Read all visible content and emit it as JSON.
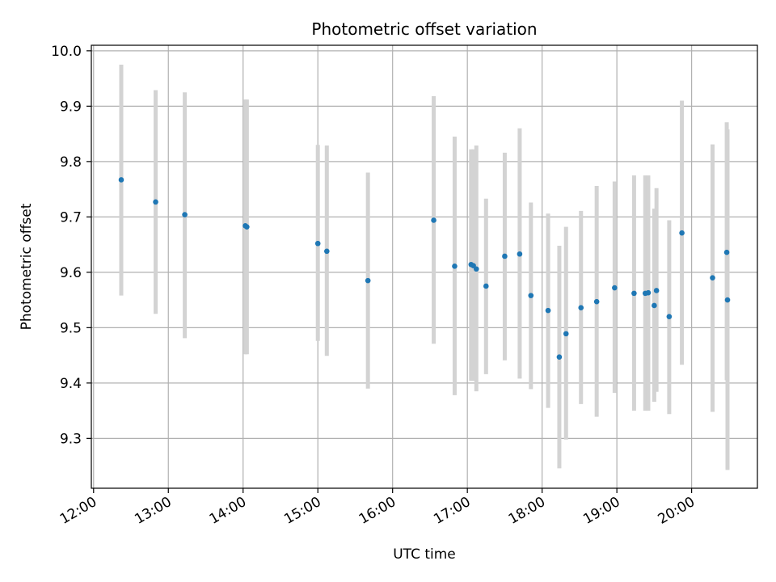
{
  "chart_data": {
    "type": "scatter",
    "title": "Photometric offset variation",
    "xlabel": "UTC time",
    "ylabel": "Photometric offset",
    "x_unit": "hour of day (UTC)",
    "xlim": [
      11.97,
      20.88
    ],
    "ylim": [
      9.21,
      10.01
    ],
    "x_ticks": [
      12,
      13,
      14,
      15,
      16,
      17,
      18,
      19,
      20
    ],
    "x_tick_labels": [
      "12:00",
      "13:00",
      "14:00",
      "15:00",
      "16:00",
      "17:00",
      "18:00",
      "19:00",
      "20:00"
    ],
    "y_ticks": [
      9.3,
      9.4,
      9.5,
      9.6,
      9.7,
      9.8,
      9.9,
      10.0
    ],
    "y_tick_labels": [
      "9.3",
      "9.4",
      "9.5",
      "9.6",
      "9.7",
      "9.8",
      "9.9",
      "10.0"
    ],
    "grid": true,
    "colors": {
      "point": "#1f77b4",
      "errorbar": "#d3d3d3",
      "grid": "#b0b0b0"
    },
    "points": [
      {
        "x": 12.37,
        "y": 9.767,
        "ylow": 9.558,
        "yhigh": 9.975
      },
      {
        "x": 12.83,
        "y": 9.727,
        "ylow": 9.525,
        "yhigh": 9.929
      },
      {
        "x": 13.22,
        "y": 9.704,
        "ylow": 9.481,
        "yhigh": 9.925
      },
      {
        "x": 14.03,
        "y": 9.684,
        "ylow": 9.452,
        "yhigh": 9.912
      },
      {
        "x": 14.05,
        "y": 9.682,
        "ylow": 9.452,
        "yhigh": 9.912
      },
      {
        "x": 15.0,
        "y": 9.652,
        "ylow": 9.476,
        "yhigh": 9.83
      },
      {
        "x": 15.12,
        "y": 9.638,
        "ylow": 9.449,
        "yhigh": 9.829
      },
      {
        "x": 15.67,
        "y": 9.585,
        "ylow": 9.39,
        "yhigh": 9.78
      },
      {
        "x": 16.55,
        "y": 9.694,
        "ylow": 9.471,
        "yhigh": 9.918
      },
      {
        "x": 16.83,
        "y": 9.611,
        "ylow": 9.378,
        "yhigh": 9.845
      },
      {
        "x": 17.05,
        "y": 9.614,
        "ylow": 9.404,
        "yhigh": 9.822
      },
      {
        "x": 17.08,
        "y": 9.612,
        "ylow": 9.404,
        "yhigh": 9.822
      },
      {
        "x": 17.12,
        "y": 9.606,
        "ylow": 9.385,
        "yhigh": 9.829
      },
      {
        "x": 17.25,
        "y": 9.575,
        "ylow": 9.416,
        "yhigh": 9.733
      },
      {
        "x": 17.5,
        "y": 9.629,
        "ylow": 9.441,
        "yhigh": 9.816
      },
      {
        "x": 17.7,
        "y": 9.633,
        "ylow": 9.408,
        "yhigh": 9.86
      },
      {
        "x": 17.85,
        "y": 9.558,
        "ylow": 9.389,
        "yhigh": 9.726
      },
      {
        "x": 18.08,
        "y": 9.531,
        "ylow": 9.355,
        "yhigh": 9.706
      },
      {
        "x": 18.23,
        "y": 9.447,
        "ylow": 9.246,
        "yhigh": 9.648
      },
      {
        "x": 18.32,
        "y": 9.489,
        "ylow": 9.298,
        "yhigh": 9.682
      },
      {
        "x": 18.52,
        "y": 9.536,
        "ylow": 9.362,
        "yhigh": 9.711
      },
      {
        "x": 18.73,
        "y": 9.547,
        "ylow": 9.339,
        "yhigh": 9.756
      },
      {
        "x": 18.97,
        "y": 9.572,
        "ylow": 9.382,
        "yhigh": 9.764
      },
      {
        "x": 19.23,
        "y": 9.562,
        "ylow": 9.35,
        "yhigh": 9.775
      },
      {
        "x": 19.38,
        "y": 9.562,
        "ylow": 9.35,
        "yhigh": 9.775
      },
      {
        "x": 19.42,
        "y": 9.563,
        "ylow": 9.35,
        "yhigh": 9.775
      },
      {
        "x": 19.5,
        "y": 9.54,
        "ylow": 9.366,
        "yhigh": 9.715
      },
      {
        "x": 19.53,
        "y": 9.567,
        "ylow": 9.384,
        "yhigh": 9.752
      },
      {
        "x": 19.7,
        "y": 9.52,
        "ylow": 9.344,
        "yhigh": 9.694
      },
      {
        "x": 19.87,
        "y": 9.671,
        "ylow": 9.433,
        "yhigh": 9.91
      },
      {
        "x": 20.28,
        "y": 9.59,
        "ylow": 9.348,
        "yhigh": 9.831
      },
      {
        "x": 20.47,
        "y": 9.636,
        "ylow": 9.405,
        "yhigh": 9.871
      },
      {
        "x": 20.48,
        "y": 9.55,
        "ylow": 9.243,
        "yhigh": 9.858
      }
    ]
  }
}
